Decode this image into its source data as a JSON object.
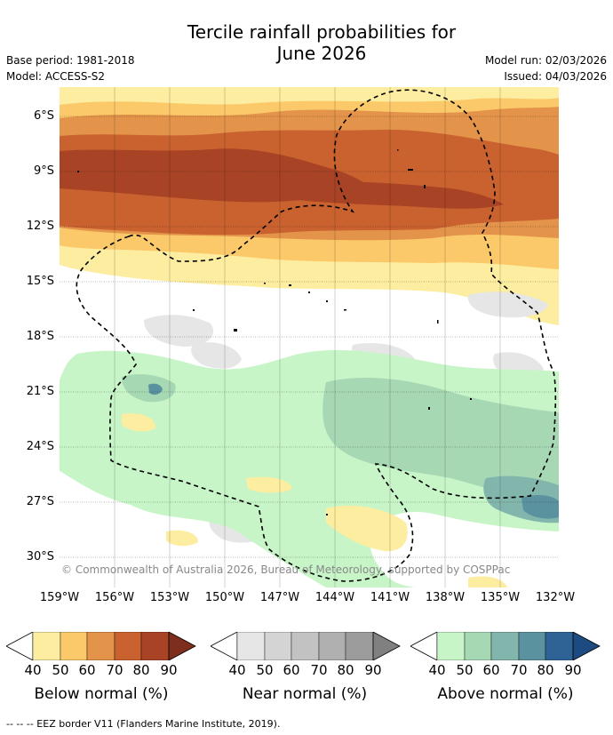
{
  "title_line1": "Tercile rainfall probabilities for",
  "title_line2": "June 2026",
  "base_period": "Base period: 1981-2018",
  "model": "Model: ACCESS-S2",
  "model_run": "Model run: 02/03/2026",
  "issued": "Issued: 04/03/2026",
  "map": {
    "lat_labels": [
      "6°S",
      "9°S",
      "12°S",
      "15°S",
      "18°S",
      "21°S",
      "24°S",
      "27°S",
      "30°S"
    ],
    "lon_labels": [
      "159°W",
      "156°W",
      "153°W",
      "150°W",
      "147°W",
      "144°W",
      "141°W",
      "138°W",
      "135°W",
      "132°W"
    ],
    "copyright": "© Commonwealth of Australia 2026, Bureau of Meteorology, supported by COSPPac"
  },
  "colorbars": [
    {
      "name": "below",
      "title": "Below normal (%)",
      "ticks": [
        "40",
        "50",
        "60",
        "70",
        "80",
        "90"
      ],
      "colors": [
        "#fdeda0",
        "#fbc96a",
        "#e3944a",
        "#c9622f",
        "#a84325"
      ]
    },
    {
      "name": "near",
      "title": "Near normal (%)",
      "ticks": [
        "40",
        "50",
        "60",
        "70",
        "80",
        "90"
      ],
      "colors": [
        "#e6e6e6",
        "#d4d4d4",
        "#c2c2c2",
        "#b0b0b0",
        "#9c9c9c"
      ]
    },
    {
      "name": "above",
      "title": "Above normal (%)",
      "ticks": [
        "40",
        "50",
        "60",
        "70",
        "80",
        "90"
      ],
      "colors": [
        "#c8f5c8",
        "#a6d8b4",
        "#82b6ad",
        "#5b92a0",
        "#2f6396"
      ]
    }
  ],
  "footer": "--  --  -- EEZ border V11 (Flanders Marine Institute, 2019)."
}
